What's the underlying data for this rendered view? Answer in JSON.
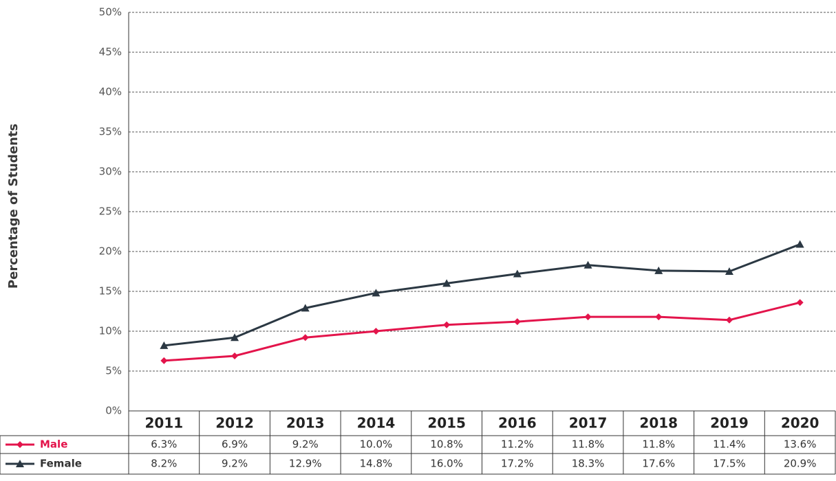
{
  "chart_data": {
    "type": "line",
    "y_label": "Percentage of Students",
    "categories": [
      "2011",
      "2012",
      "2013",
      "2014",
      "2015",
      "2016",
      "2017",
      "2018",
      "2019",
      "2020"
    ],
    "series": [
      {
        "name": "Male",
        "color": "#e3144b",
        "marker": "diamond",
        "values": [
          6.3,
          6.9,
          9.2,
          10.0,
          10.8,
          11.2,
          11.8,
          11.8,
          11.4,
          13.6
        ],
        "value_labels": [
          "6.3%",
          "6.9%",
          "9.2%",
          "10.0%",
          "10.8%",
          "11.2%",
          "11.8%",
          "11.8%",
          "11.4%",
          "13.6%"
        ]
      },
      {
        "name": "Female",
        "color": "#2b3843",
        "marker": "triangle",
        "values": [
          8.2,
          9.2,
          12.9,
          14.8,
          16.0,
          17.2,
          18.3,
          17.6,
          17.5,
          20.9
        ],
        "value_labels": [
          "8.2%",
          "9.2%",
          "12.9%",
          "14.8%",
          "16.0%",
          "17.2%",
          "18.3%",
          "17.6%",
          "17.5%",
          "20.9%"
        ]
      }
    ],
    "ylim": [
      0,
      50
    ],
    "yticks": [
      {
        "value": 0,
        "label": "0%"
      },
      {
        "value": 5,
        "label": "5%"
      },
      {
        "value": 10,
        "label": "10%"
      },
      {
        "value": 15,
        "label": "15%"
      },
      {
        "value": 20,
        "label": "20%"
      },
      {
        "value": 25,
        "label": "25%"
      },
      {
        "value": 30,
        "label": "30%"
      },
      {
        "value": 35,
        "label": "35%"
      },
      {
        "value": 40,
        "label": "40%"
      },
      {
        "value": 45,
        "label": "45%"
      },
      {
        "value": 50,
        "label": "50%"
      }
    ],
    "grid": true
  }
}
